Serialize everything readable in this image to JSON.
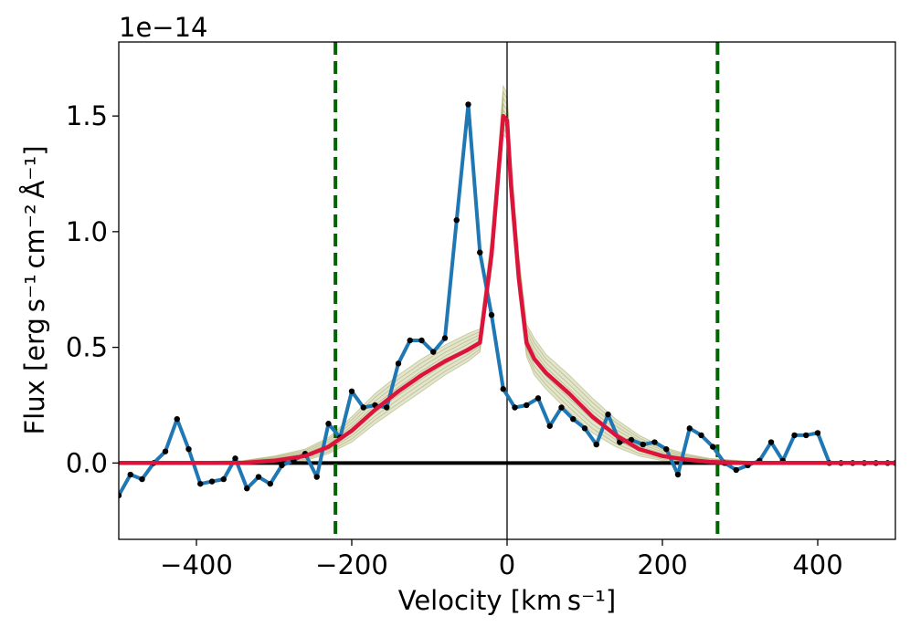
{
  "chart_data": {
    "type": "line",
    "offset_text": "1e−14",
    "xlabel": "Velocity [km s⁻¹]",
    "ylabel": "Flux [erg s⁻¹ cm⁻² Å⁻¹]",
    "xlim": [
      -500,
      500
    ],
    "ylim": [
      -0.33,
      1.82
    ],
    "xticks": [
      -400,
      -200,
      0,
      200,
      400
    ],
    "xtick_labels": [
      "−400",
      "−200",
      "0",
      "200",
      "400"
    ],
    "yticks": [
      0.0,
      0.5,
      1.0,
      1.5
    ],
    "ytick_labels": [
      "0.0",
      "0.5",
      "1.0",
      "1.5"
    ],
    "grid": false,
    "vlines": [
      {
        "x": -221,
        "color": "#006400",
        "style": "dashed"
      },
      {
        "x": 271,
        "color": "#006400",
        "style": "dashed"
      },
      {
        "x": 0,
        "color": "#000000",
        "style": "solid"
      }
    ],
    "hlines": [
      {
        "y": 0.0,
        "color": "#000000",
        "style": "solid"
      }
    ],
    "series": [
      {
        "color": "#1f77b4",
        "markers": "#000000",
        "x": [
          -500,
          -485,
          -470,
          -455,
          -440,
          -425,
          -410,
          -395,
          -380,
          -365,
          -350,
          -335,
          -320,
          -305,
          -290,
          -275,
          -260,
          -245,
          -230,
          -215,
          -200,
          -185,
          -170,
          -155,
          -140,
          -125,
          -110,
          -95,
          -80,
          -65,
          -50,
          -35,
          -20,
          -5,
          10,
          25,
          40,
          55,
          70,
          85,
          100,
          115,
          130,
          145,
          160,
          175,
          190,
          205,
          220,
          235,
          250,
          265,
          280,
          295,
          310,
          325,
          340,
          355,
          370,
          385,
          400,
          415,
          430,
          445,
          460,
          475,
          490,
          500
        ],
        "y": [
          -0.14,
          -0.05,
          -0.07,
          0.0,
          0.05,
          0.19,
          0.06,
          -0.09,
          -0.08,
          -0.07,
          0.02,
          -0.11,
          -0.06,
          -0.09,
          -0.01,
          0.01,
          0.04,
          -0.06,
          0.17,
          0.11,
          0.31,
          0.24,
          0.25,
          0.24,
          0.43,
          0.53,
          0.53,
          0.48,
          0.54,
          1.05,
          1.55,
          0.91,
          0.64,
          0.32,
          0.24,
          0.25,
          0.28,
          0.16,
          0.24,
          0.19,
          0.15,
          0.08,
          0.21,
          0.09,
          0.1,
          0.08,
          0.09,
          0.06,
          -0.05,
          0.15,
          0.12,
          0.07,
          0.0,
          -0.03,
          -0.01,
          0.01,
          0.09,
          0.01,
          0.12,
          0.12,
          0.13,
          0.0,
          0.0,
          0.0,
          0.0,
          0.0,
          0.0,
          0.0
        ]
      },
      {
        "color": "#dc143c",
        "x": [
          -500,
          -340,
          -300,
          -260,
          -230,
          -200,
          -170,
          -140,
          -110,
          -80,
          -50,
          -35,
          -20,
          -10,
          -5,
          0,
          5,
          15,
          25,
          35,
          50,
          80,
          110,
          140,
          170,
          200,
          230,
          260,
          300,
          340,
          500
        ],
        "y": [
          0.0,
          0.0,
          0.01,
          0.03,
          0.07,
          0.14,
          0.23,
          0.31,
          0.38,
          0.44,
          0.49,
          0.52,
          0.9,
          1.3,
          1.5,
          1.48,
          1.2,
          0.8,
          0.52,
          0.45,
          0.39,
          0.3,
          0.2,
          0.12,
          0.06,
          0.03,
          0.015,
          0.005,
          0.0,
          0.0,
          0.0
        ]
      }
    ],
    "envelope": {
      "color": "#9aa050",
      "x": [
        -500,
        -340,
        -300,
        -260,
        -230,
        -200,
        -170,
        -140,
        -110,
        -80,
        -50,
        -35,
        -20,
        -10,
        -5,
        0,
        5,
        15,
        25,
        35,
        50,
        80,
        110,
        140,
        170,
        200,
        230,
        260,
        300,
        340,
        500
      ],
      "lower": [
        0.0,
        0.0,
        0.0,
        0.01,
        0.04,
        0.09,
        0.17,
        0.24,
        0.31,
        0.38,
        0.44,
        0.48,
        0.84,
        1.22,
        1.42,
        1.4,
        1.12,
        0.73,
        0.46,
        0.38,
        0.32,
        0.22,
        0.13,
        0.07,
        0.03,
        0.01,
        0.0,
        0.0,
        0.0,
        0.0,
        0.0
      ],
      "upper": [
        0.0,
        0.01,
        0.03,
        0.06,
        0.11,
        0.2,
        0.3,
        0.38,
        0.45,
        0.51,
        0.56,
        0.58,
        0.98,
        1.4,
        1.63,
        1.6,
        1.32,
        0.9,
        0.6,
        0.54,
        0.47,
        0.38,
        0.28,
        0.19,
        0.12,
        0.07,
        0.04,
        0.02,
        0.01,
        0.0,
        0.0
      ]
    }
  }
}
